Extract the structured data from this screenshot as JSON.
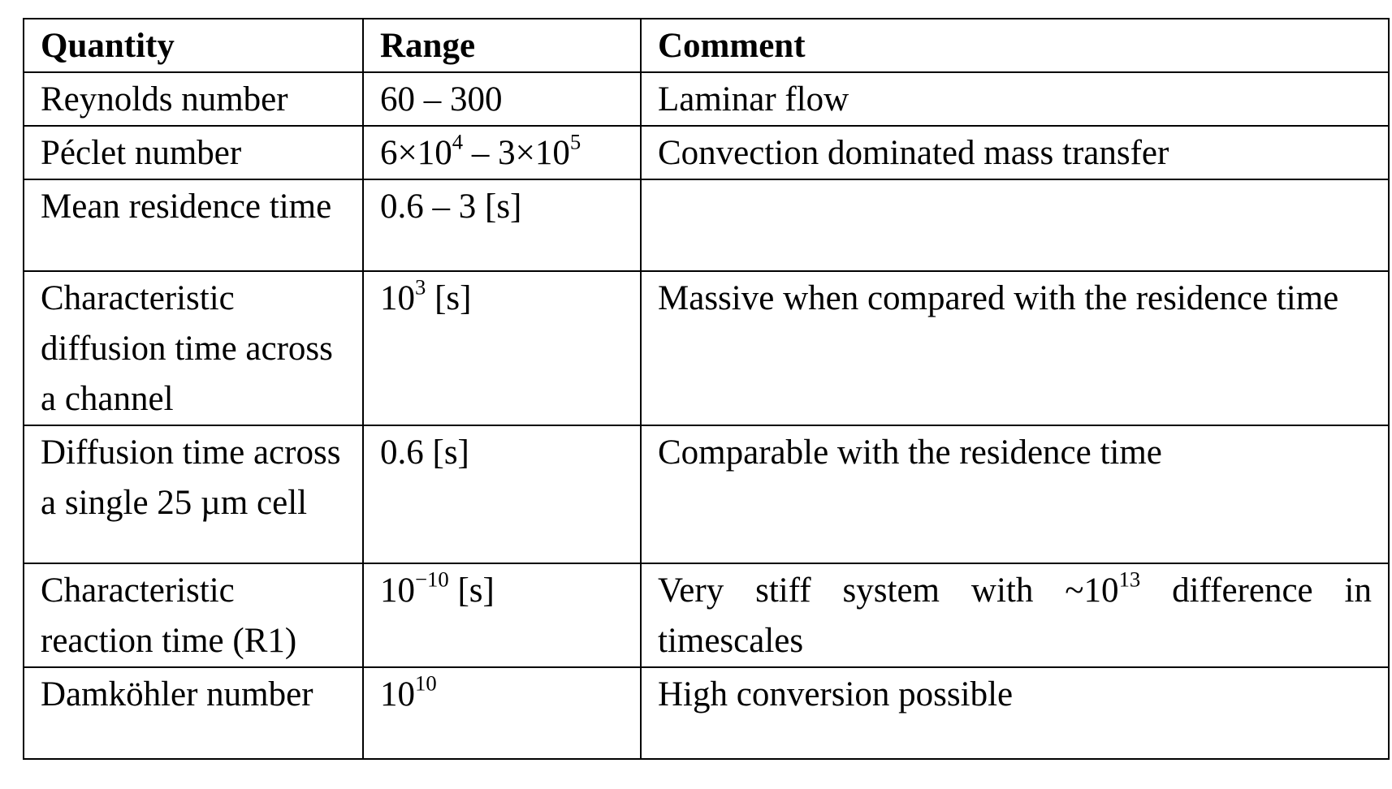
{
  "table": {
    "headers": [
      "Quantity",
      "Range",
      "Comment"
    ],
    "rows": [
      {
        "quantity": "Reynolds number",
        "range": {
          "text": "60 – 300"
        },
        "comment": "Laminar flow"
      },
      {
        "quantity": "Péclet number",
        "range": {
          "a": "6×10",
          "a_exp": "4",
          "mid": " – 3×10",
          "b_exp": "5"
        },
        "comment": "Convection dominated mass transfer"
      },
      {
        "quantity": "Mean residence time",
        "range": {
          "text": "0.6 – 3 [s]"
        },
        "comment": ""
      },
      {
        "quantity": "Characteristic diffusion time across a channel",
        "range": {
          "base": "10",
          "exp": "3",
          "unit": " [s]"
        },
        "comment": "Massive when compared with the residence time"
      },
      {
        "quantity": "Diffusion time across a single 25 µm cell",
        "range": {
          "text": "0.6 [s]"
        },
        "comment": "Comparable with the residence time"
      },
      {
        "quantity": "Characteristic reaction time (R1)",
        "range": {
          "base": "10",
          "exp": "−10",
          "unit": " [s]"
        },
        "comment": {
          "pre": "Very stiff system with ~10",
          "exp": "13",
          "post": " difference in timescales"
        }
      },
      {
        "quantity": "Damköhler number",
        "range": {
          "base": "10",
          "exp": "10"
        },
        "comment": "High conversion possible"
      }
    ]
  }
}
